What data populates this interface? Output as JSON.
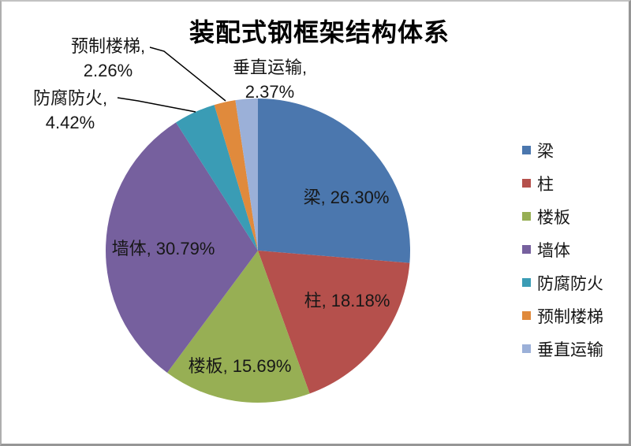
{
  "chart_data": {
    "type": "pie",
    "title": "装配式钢框架结构体系",
    "legend_position": "right",
    "start_angle_deg": 0,
    "direction": "clockwise",
    "categories": [
      "梁",
      "柱",
      "楼板",
      "墙体",
      "防腐防火",
      "预制楼梯",
      "垂直运输"
    ],
    "values": [
      26.3,
      18.18,
      15.69,
      30.79,
      4.42,
      2.26,
      2.37
    ],
    "slices": [
      {
        "name": "梁",
        "value": 26.3,
        "label": "梁, 26.30%",
        "color": "#4B77AE",
        "label_placement": "inside"
      },
      {
        "name": "柱",
        "value": 18.18,
        "label": "柱, 18.18%",
        "color": "#B5504C",
        "label_placement": "inside"
      },
      {
        "name": "楼板",
        "value": 15.69,
        "label": "楼板, 15.69%",
        "color": "#97AF54",
        "label_placement": "inside"
      },
      {
        "name": "墙体",
        "value": 30.79,
        "label": "墙体, 30.79%",
        "color": "#76609E",
        "label_placement": "inside"
      },
      {
        "name": "防腐防火",
        "value": 4.42,
        "label_line1": "防腐防火,",
        "label_line2": "4.42%",
        "color": "#3A9CB5",
        "label_placement": "outside"
      },
      {
        "name": "预制楼梯",
        "value": 2.26,
        "label_line1": "预制楼梯,",
        "label_line2": "2.26%",
        "color": "#E08A3C",
        "label_placement": "outside"
      },
      {
        "name": "垂直运输",
        "value": 2.37,
        "label_line1": "垂直运输,",
        "label_line2": "2.37%",
        "color": "#9BB0D8",
        "label_placement": "outside"
      }
    ]
  }
}
